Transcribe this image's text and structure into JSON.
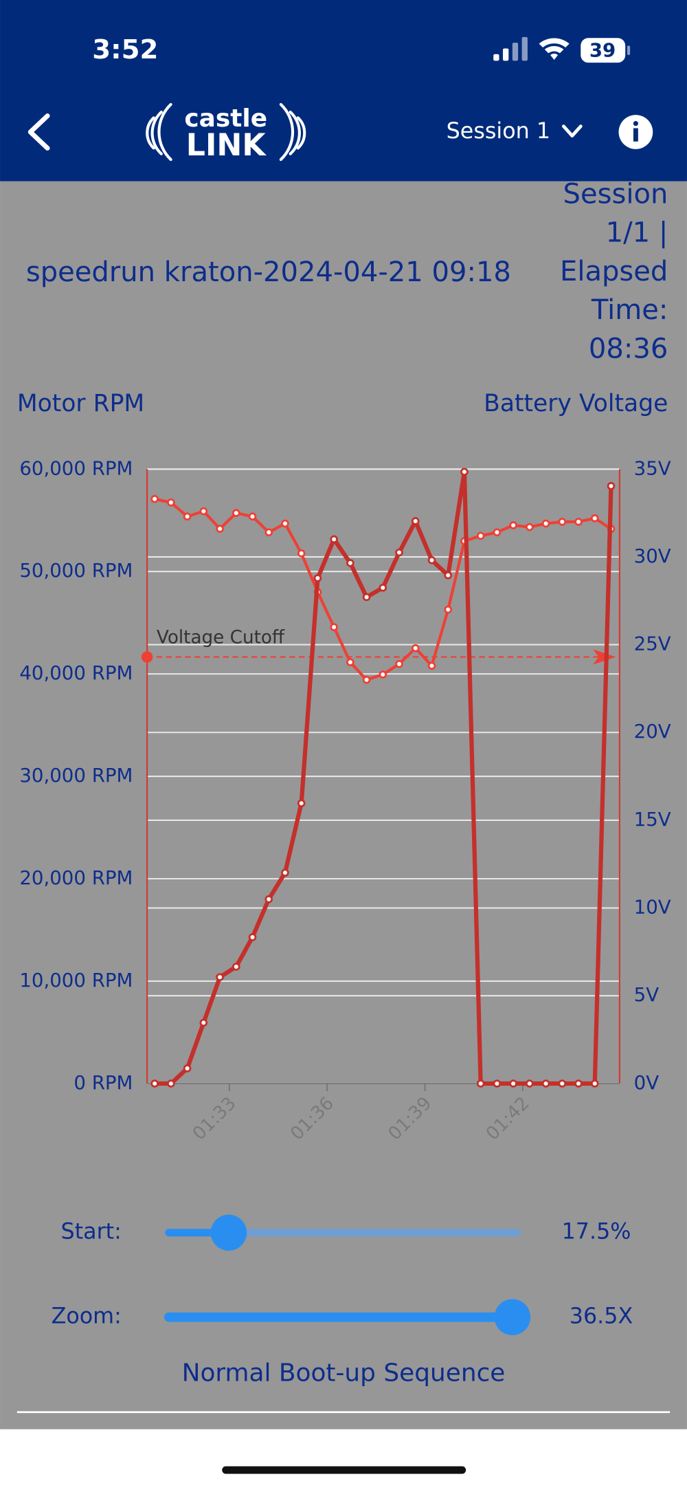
{
  "status_bar": {
    "time": "3:52",
    "battery": "39"
  },
  "header": {
    "logo_top": "castle",
    "logo_bottom": "LINK",
    "session_select": "Session 1"
  },
  "session": {
    "title": "speedrun kraton-2024-04-21 09:18",
    "info_lines": [
      "Session",
      "1/1 |",
      "Elapsed",
      "Time:",
      "08:36"
    ]
  },
  "chart_data": {
    "type": "line",
    "y_label": "Motor RPM",
    "y2_label": "Battery Voltage",
    "categories": [
      null,
      null,
      null,
      null,
      "01:33",
      null,
      null,
      null,
      null,
      null,
      "01:36",
      null,
      null,
      null,
      null,
      null,
      "01:39",
      null,
      null,
      null,
      null,
      null,
      "01:42",
      null,
      null,
      null,
      null,
      null,
      null
    ],
    "series": [
      {
        "name": "Motor RPM",
        "color": "#c4302b",
        "values": [
          0,
          0,
          1480,
          5940,
          10390,
          11410,
          14290,
          18000,
          20590,
          27370,
          49350,
          53150,
          50830,
          47500,
          48420,
          51860,
          54920,
          51110,
          49630,
          59740,
          0,
          0,
          0,
          0,
          0,
          0,
          0,
          0,
          58350
        ]
      },
      {
        "name": "Battery Voltage",
        "color": "#ee4035",
        "axis": "y2",
        "values": [
          33.3,
          33.1,
          32.3,
          32.6,
          31.6,
          32.5,
          32.3,
          31.4,
          31.9,
          30.2,
          28.0,
          26.0,
          24.0,
          23.0,
          23.3,
          23.9,
          24.8,
          23.8,
          27.0,
          30.9,
          31.2,
          31.4,
          31.8,
          31.7,
          31.9,
          32.0,
          32.0,
          32.2,
          31.6
        ]
      }
    ],
    "ylim": [
      0,
      60000
    ],
    "yticks": [
      {
        "value": 0,
        "label": "0 RPM"
      },
      {
        "value": 10000,
        "label": "10,000 RPM"
      },
      {
        "value": 20000,
        "label": "20,000 RPM"
      },
      {
        "value": 30000,
        "label": "30,000 RPM"
      },
      {
        "value": 40000,
        "label": "40,000 RPM"
      },
      {
        "value": 50000,
        "label": "50,000 RPM"
      },
      {
        "value": 60000,
        "label": "60,000 RPM"
      }
    ],
    "y2lim": [
      0,
      35
    ],
    "y2ticks": [
      {
        "value": 0,
        "label": "0V"
      },
      {
        "value": 5,
        "label": "5V"
      },
      {
        "value": 10,
        "label": "10V"
      },
      {
        "value": 15,
        "label": "15V"
      },
      {
        "value": 20,
        "label": "20V"
      },
      {
        "value": 25,
        "label": "25V"
      },
      {
        "value": 30,
        "label": "30V"
      },
      {
        "value": 35,
        "label": "35V"
      }
    ],
    "grid": true,
    "annotation": {
      "text": "Voltage Cutoff",
      "value": 24.3,
      "axis": "y2"
    }
  },
  "controls": {
    "start_label": "Start:",
    "start_value": "17.5%",
    "zoom_label": "Zoom:",
    "zoom_value": "36.5X",
    "status": "Normal Boot-up Sequence"
  }
}
